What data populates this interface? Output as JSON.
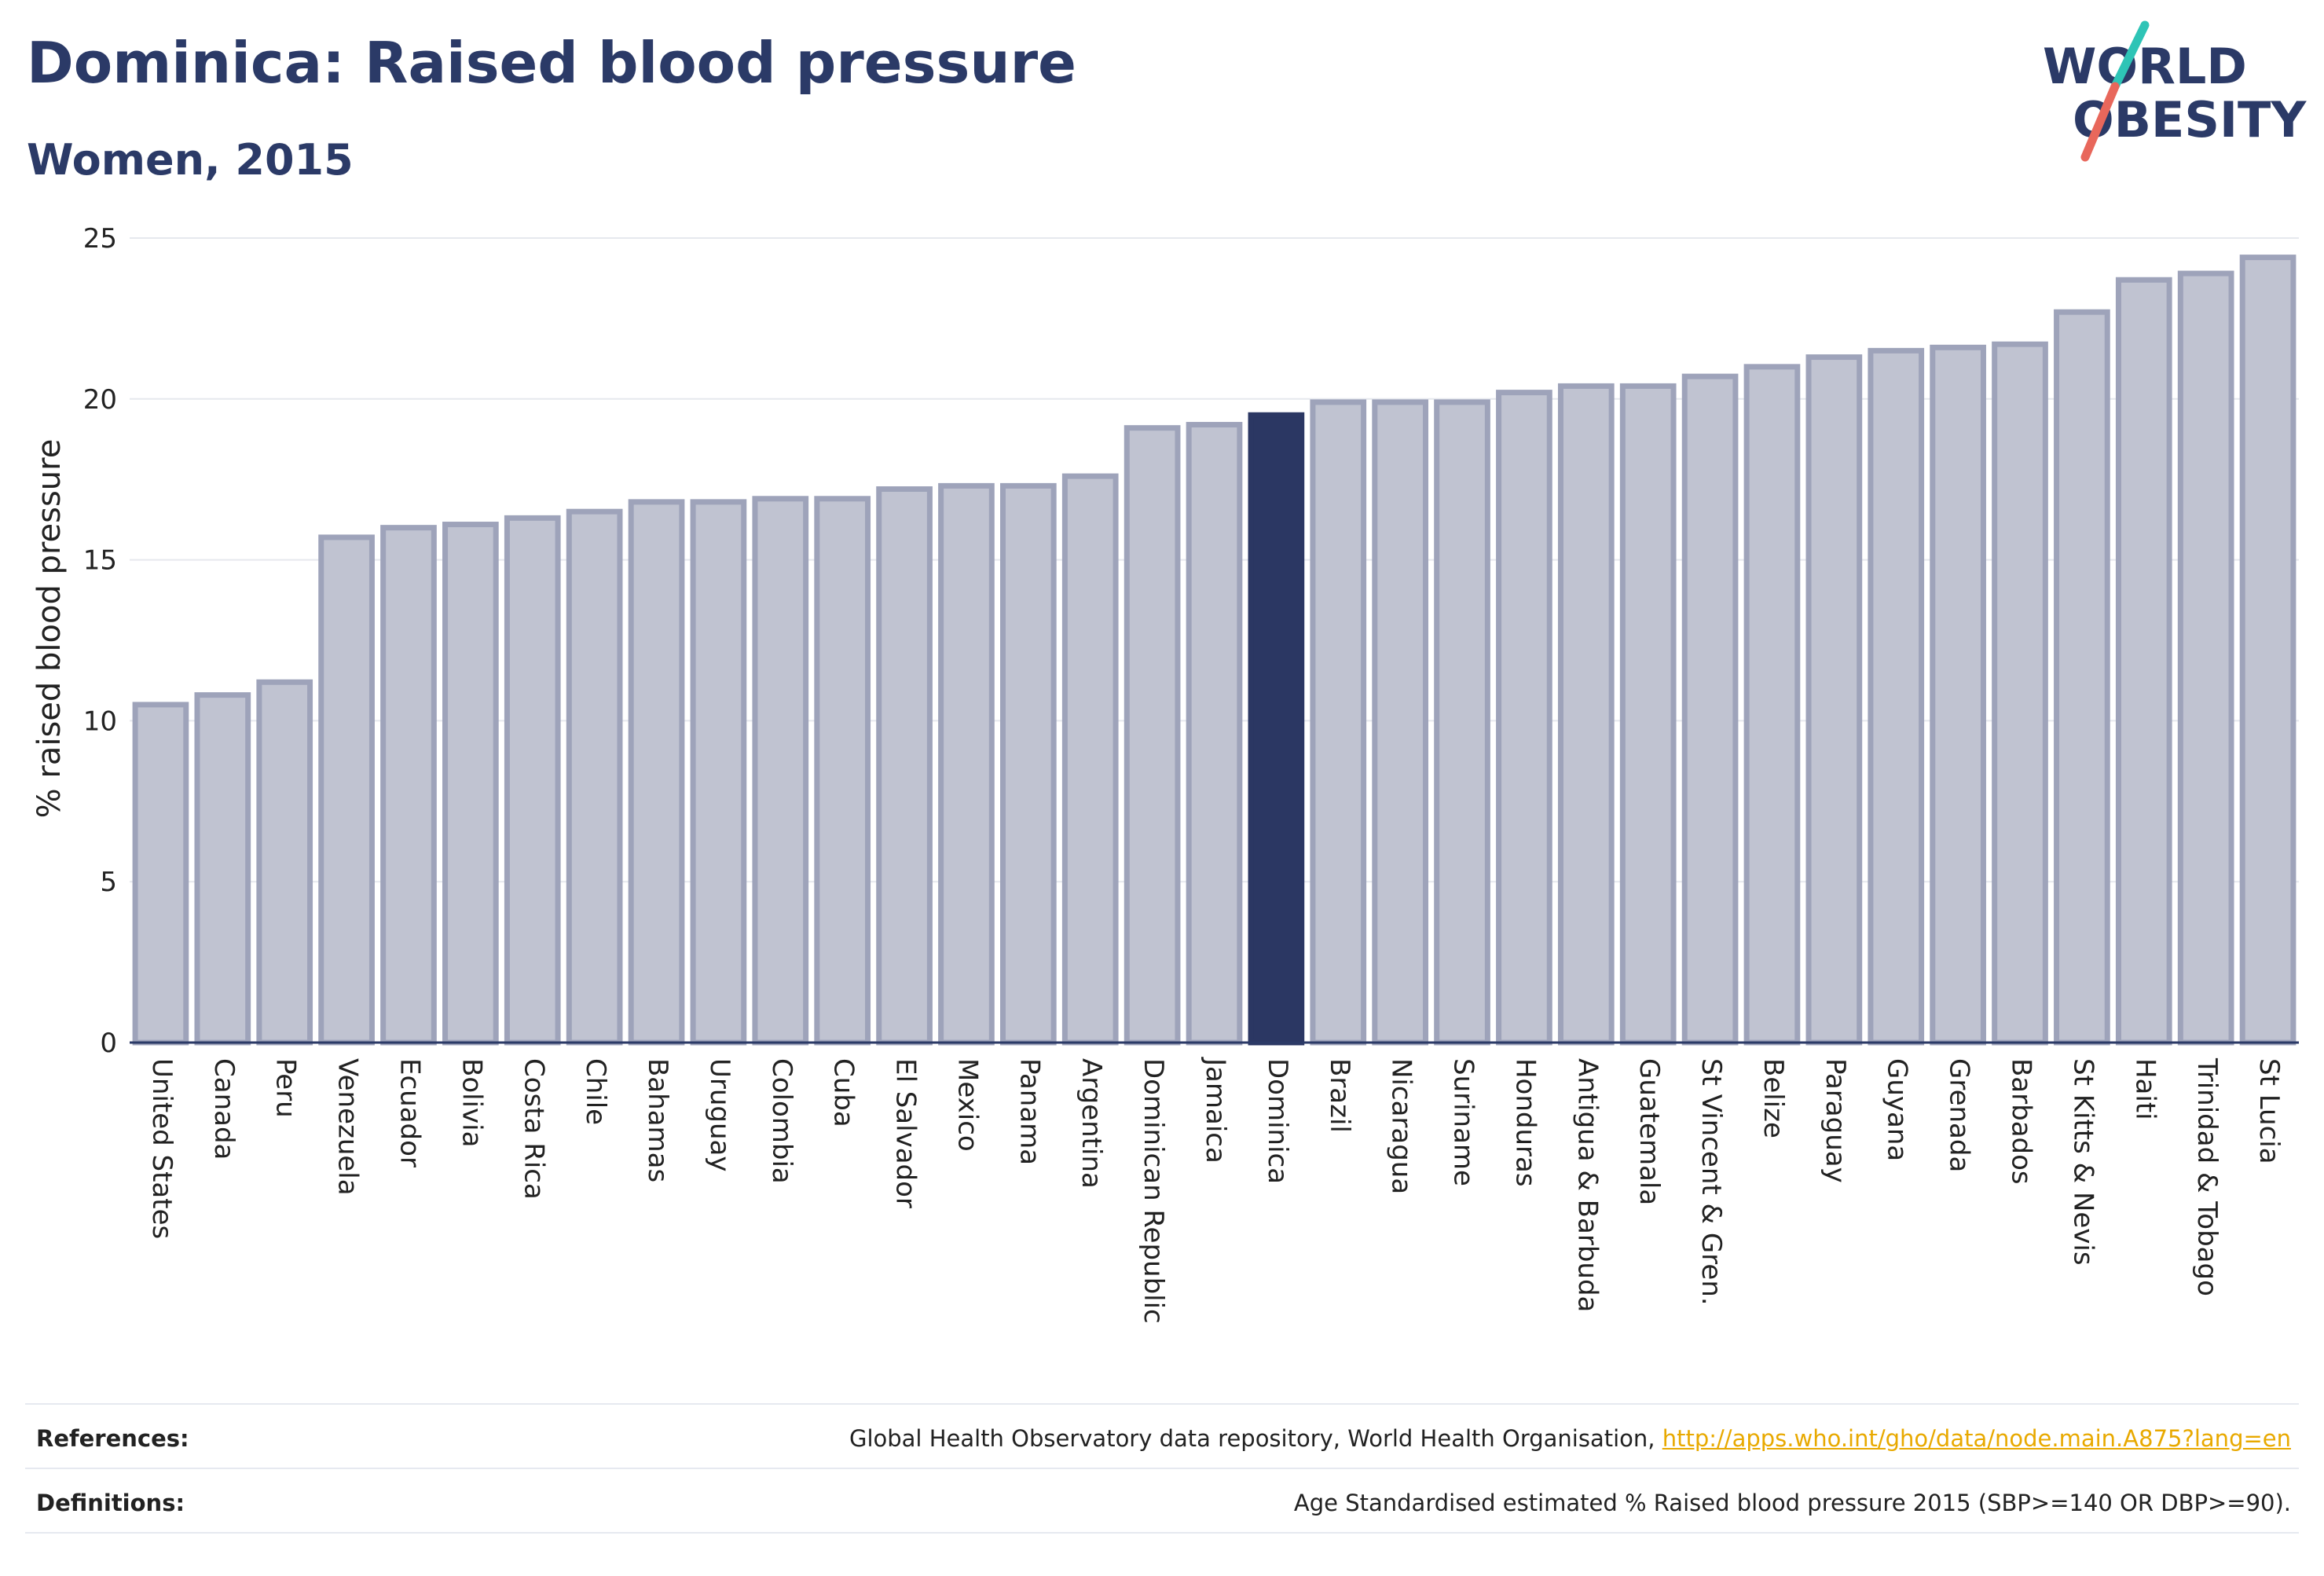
{
  "title": "Dominica: Raised blood pressure",
  "subtitle": "Women, 2015",
  "logo": {
    "line1": "WORLD",
    "line2": "OBESITY"
  },
  "chart_data": {
    "type": "bar",
    "ylabel": "% raised blood pressure",
    "ylim": [
      0,
      25
    ],
    "yticks": [
      0,
      5,
      10,
      15,
      20,
      25
    ],
    "grid": true,
    "highlight": "Dominica",
    "categories": [
      "United States",
      "Canada",
      "Peru",
      "Venezuela",
      "Ecuador",
      "Bolivia",
      "Costa Rica",
      "Chile",
      "Bahamas",
      "Uruguay",
      "Colombia",
      "Cuba",
      "El Salvador",
      "Mexico",
      "Panama",
      "Argentina",
      "Dominican Republic",
      "Jamaica",
      "Dominica",
      "Brazil",
      "Nicaragua",
      "Suriname",
      "Honduras",
      "Antigua & Barbuda",
      "Guatemala",
      "St Vincent & Gren.",
      "Belize",
      "Paraguay",
      "Guyana",
      "Grenada",
      "Barbados",
      "St Kitts & Nevis",
      "Haiti",
      "Trinidad & Tobago",
      "St Lucia"
    ],
    "values": [
      10.5,
      10.8,
      11.2,
      15.7,
      16.0,
      16.1,
      16.3,
      16.5,
      16.8,
      16.8,
      16.9,
      16.9,
      17.2,
      17.3,
      17.3,
      17.6,
      19.1,
      19.2,
      19.5,
      19.9,
      19.9,
      19.9,
      20.2,
      20.4,
      20.4,
      20.7,
      21.0,
      21.3,
      21.5,
      21.6,
      21.7,
      22.7,
      23.7,
      23.9,
      24.4
    ],
    "colors": {
      "bar_fill": "#c0c3d1",
      "bar_stroke": "#9ea3ba",
      "highlight": "#2b3763",
      "axis": "#2b3a67",
      "grid": "#e6e8ee"
    }
  },
  "footer": {
    "references_label": "References:",
    "references_text": "Global Health Observatory data repository, World Health Organisation, ",
    "references_link": "http://apps.who.int/gho/data/node.main.A875?lang=en",
    "definitions_label": "Definitions:",
    "definitions_text": "Age Standardised estimated % Raised blood pressure 2015 (SBP>=140 OR DBP>=90)."
  }
}
